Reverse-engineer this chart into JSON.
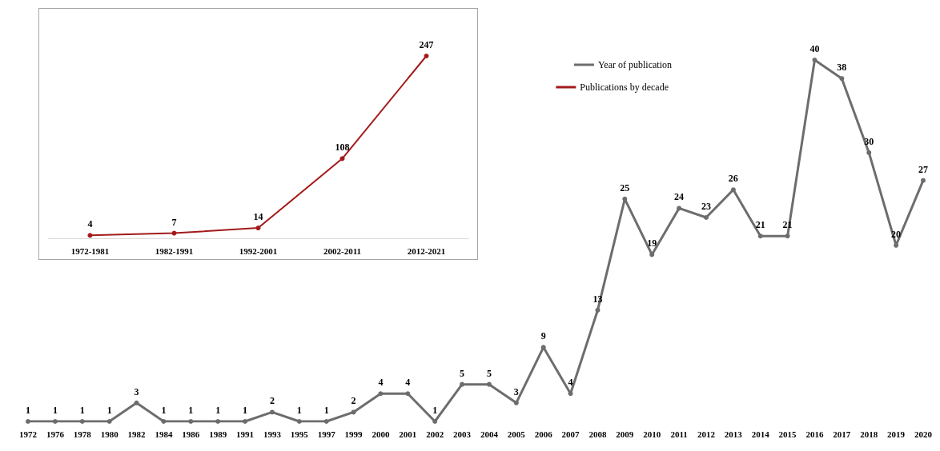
{
  "chart_data": [
    {
      "type": "line",
      "categories": [
        "1972",
        "1976",
        "1978",
        "1980",
        "1982",
        "1984",
        "1986",
        "1989",
        "1991",
        "1993",
        "1995",
        "1997",
        "1999",
        "2000",
        "2001",
        "2002",
        "2003",
        "2004",
        "2005",
        "2006",
        "2007",
        "2008",
        "2009",
        "2010",
        "2011",
        "2012",
        "2013",
        "2014",
        "2015",
        "2016",
        "2017",
        "2018",
        "2019",
        "2020"
      ],
      "series": [
        {
          "name": "Year of publication",
          "color": "#6d6d6d",
          "values": [
            1,
            1,
            1,
            1,
            3,
            1,
            1,
            1,
            1,
            2,
            1,
            1,
            2,
            4,
            4,
            1,
            5,
            5,
            3,
            9,
            4,
            13,
            25,
            19,
            24,
            23,
            26,
            21,
            21,
            40,
            38,
            30,
            20,
            27
          ]
        }
      ],
      "data_labels": true,
      "marker": "circle",
      "legend": "top right",
      "grid": false,
      "tick_labels": "x"
    },
    {
      "type": "line",
      "categories": [
        "1972-1981",
        "1982-1991",
        "1992-2001",
        "2002-2011",
        "2012-2021"
      ],
      "series": [
        {
          "name": "Publications by decade",
          "color": "#a31a1a",
          "values": [
            4,
            7,
            14,
            108,
            247
          ]
        }
      ],
      "data_labels": true,
      "marker": "circle",
      "legend": "right",
      "grid": false,
      "tick_labels": "x"
    }
  ]
}
